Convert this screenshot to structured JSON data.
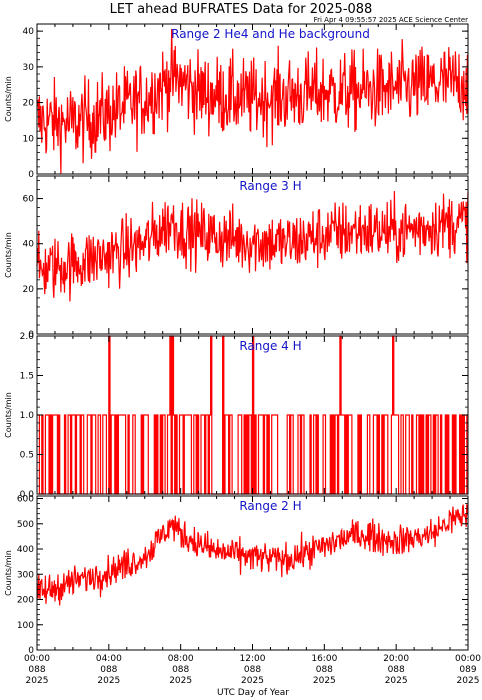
{
  "title": "LET ahead BUFRATES Data for 2025-088",
  "timestamp": "Fri Apr  4 09:55:57 2025 ACE Science Center",
  "colors": {
    "trace": "#ff0000",
    "label": "#1414c8",
    "axes": "#000000"
  },
  "x_axis": {
    "label": "UTC Day of Year",
    "ticks": [
      {
        "time": "00:00",
        "doy": "088",
        "year": "2025"
      },
      {
        "time": "04:00",
        "doy": "088",
        "year": "2025"
      },
      {
        "time": "08:00",
        "doy": "088",
        "year": "2025"
      },
      {
        "time": "12:00",
        "doy": "088",
        "year": "2025"
      },
      {
        "time": "16:00",
        "doy": "088",
        "year": "2025"
      },
      {
        "time": "20:00",
        "doy": "088",
        "year": "2025"
      },
      {
        "time": "00:00",
        "doy": "089",
        "year": "2025"
      }
    ]
  },
  "chart_data": [
    {
      "type": "line",
      "title": "Range 2 He4 and He background",
      "ylabel": "Counts/min",
      "ylim": [
        0,
        42
      ],
      "yticks": [
        0,
        10,
        20,
        30,
        40
      ],
      "series": [
        {
          "x": [
            0,
            2,
            4,
            6,
            7.5,
            8,
            9,
            10,
            12,
            14,
            16,
            18,
            20,
            22,
            24
          ],
          "y": [
            15,
            14,
            17,
            21,
            27,
            26,
            23,
            22,
            21,
            22,
            23,
            23,
            24,
            25,
            26
          ]
        }
      ]
    },
    {
      "type": "line",
      "title": "Range 3 H",
      "ylabel": "Counts/min",
      "ylim": [
        0,
        70
      ],
      "yticks": [
        0,
        20,
        40,
        60
      ],
      "series": [
        {
          "x": [
            0,
            2,
            4,
            6,
            7.5,
            8,
            10,
            12,
            14,
            16,
            18,
            20,
            22,
            24
          ],
          "y": [
            28,
            31,
            35,
            40,
            50,
            46,
            43,
            41,
            40,
            44,
            46,
            45,
            48,
            50
          ]
        }
      ]
    },
    {
      "type": "line",
      "title": "Range 4 H",
      "ylabel": "Counts/min",
      "ylim": [
        0,
        2
      ],
      "yticks": [
        "0.0",
        "0.5",
        "1.0",
        "1.5",
        "2.0"
      ],
      "series": [
        {
          "x": [
            0,
            24
          ],
          "y": [
            0.5,
            0.5
          ],
          "spikes_to_2": [
            4.0,
            7.4,
            7.5,
            9.7,
            10.3,
            12.0,
            16.9,
            19.8
          ]
        }
      ]
    },
    {
      "type": "line",
      "title": "Range 2 H",
      "ylabel": "Counts/min",
      "ylim": [
        0,
        610
      ],
      "yticks": [
        0,
        100,
        200,
        300,
        400,
        500,
        600
      ],
      "series": [
        {
          "x": [
            0,
            2,
            4,
            6,
            7.5,
            8,
            9,
            10,
            12,
            13,
            14,
            16,
            17,
            18,
            20,
            22,
            23,
            24
          ],
          "y": [
            220,
            270,
            310,
            370,
            500,
            460,
            420,
            390,
            370,
            360,
            360,
            410,
            440,
            460,
            430,
            460,
            510,
            540
          ]
        }
      ]
    }
  ]
}
